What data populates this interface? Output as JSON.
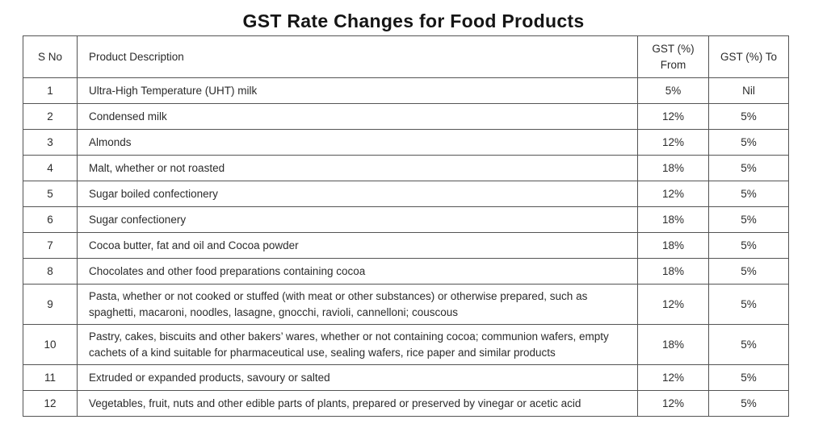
{
  "title": "GST Rate Changes for Food Products",
  "colors": {
    "background": "#ffffff",
    "table_border": "#545454",
    "text": "#2b2b2b",
    "title_text": "#151515"
  },
  "table": {
    "headers": [
      "S No",
      "Product Description",
      "GST (%) From",
      "GST (%) To"
    ],
    "rows": [
      {
        "s_no": "1",
        "description": "Ultra-High Temperature (UHT) milk",
        "from": "5%",
        "to": "Nil"
      },
      {
        "s_no": "2",
        "description": "Condensed milk",
        "from": "12%",
        "to": "5%"
      },
      {
        "s_no": "3",
        "description": "Almonds",
        "from": "12%",
        "to": "5%"
      },
      {
        "s_no": "4",
        "description": "Malt, whether or not roasted",
        "from": "18%",
        "to": "5%"
      },
      {
        "s_no": "5",
        "description": "Sugar boiled confectionery",
        "from": "12%",
        "to": "5%"
      },
      {
        "s_no": "6",
        "description": "Sugar confectionery",
        "from": "18%",
        "to": "5%"
      },
      {
        "s_no": "7",
        "description": "Cocoa butter, fat and oil and Cocoa powder",
        "from": "18%",
        "to": "5%"
      },
      {
        "s_no": "8",
        "description": "Chocolates and other food preparations containing cocoa",
        "from": "18%",
        "to": "5%"
      },
      {
        "s_no": "9",
        "description": "Pasta, whether or not cooked or stuffed (with meat or other substances) or otherwise prepared, such as spaghetti, macaroni, noodles, lasagne, gnocchi, ravioli, cannelloni; couscous",
        "from": "12%",
        "to": "5%"
      },
      {
        "s_no": "10",
        "description": "Pastry, cakes, biscuits and other bakers’ wares, whether or not containing cocoa; communion wafers, empty cachets of a kind suitable for pharmaceutical use, sealing wafers, rice paper and similar products",
        "from": "18%",
        "to": "5%"
      },
      {
        "s_no": "11",
        "description": "Extruded or expanded products, savoury or salted",
        "from": "12%",
        "to": "5%"
      },
      {
        "s_no": "12",
        "description": "Vegetables, fruit, nuts and other edible parts of plants, prepared or preserved by vinegar or acetic acid",
        "from": "12%",
        "to": "5%"
      }
    ]
  }
}
